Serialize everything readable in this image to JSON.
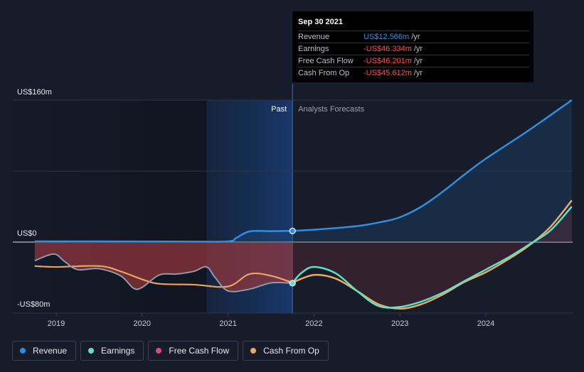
{
  "chart_data": {
    "type": "line",
    "y_axis_labels": [
      "US$160m",
      "US$0",
      "-US$80m"
    ],
    "ylim": [
      -80,
      160
    ],
    "y_unit": "US$m",
    "x_ticks": [
      "2019",
      "2020",
      "2021",
      "2022",
      "2023",
      "2024"
    ],
    "x_tick_values": [
      2019,
      2020,
      2021,
      2022,
      2023,
      2024
    ],
    "xlim": [
      2018.5,
      2025.0
    ],
    "past_label": "Past",
    "forecast_label": "Analysts Forecasts",
    "divider_x": 2021.75,
    "highlight_start_x": 2020.75,
    "series": [
      {
        "name": "Revenue",
        "color": "#2e8fe0",
        "points": [
          [
            2018.75,
            0.8
          ],
          [
            2019.5,
            0.8
          ],
          [
            2020.5,
            0.6
          ],
          [
            2021.0,
            0.8
          ],
          [
            2021.1,
            5
          ],
          [
            2021.25,
            12
          ],
          [
            2021.5,
            12.3
          ],
          [
            2021.75,
            12.566
          ],
          [
            2022.0,
            14
          ],
          [
            2022.5,
            18
          ],
          [
            2022.8,
            23
          ],
          [
            2023.0,
            28
          ],
          [
            2023.25,
            40
          ],
          [
            2023.5,
            57
          ],
          [
            2023.75,
            76
          ],
          [
            2024.0,
            94
          ],
          [
            2024.5,
            126
          ],
          [
            2025.0,
            160
          ]
        ]
      },
      {
        "name": "Earnings",
        "color": "#5ee1c7",
        "points": [
          [
            2018.75,
            -21
          ],
          [
            2018.9,
            -15
          ],
          [
            2019.0,
            -14
          ],
          [
            2019.1,
            -22
          ],
          [
            2019.25,
            -31
          ],
          [
            2019.5,
            -30
          ],
          [
            2019.75,
            -38
          ],
          [
            2019.9,
            -52
          ],
          [
            2020.0,
            -51
          ],
          [
            2020.2,
            -37
          ],
          [
            2020.4,
            -36
          ],
          [
            2020.6,
            -33
          ],
          [
            2020.75,
            -28
          ],
          [
            2020.85,
            -40
          ],
          [
            2021.0,
            -55
          ],
          [
            2021.25,
            -53
          ],
          [
            2021.5,
            -46
          ],
          [
            2021.75,
            -46.334
          ],
          [
            2021.85,
            -35
          ],
          [
            2022.0,
            -28
          ],
          [
            2022.25,
            -35
          ],
          [
            2022.5,
            -55
          ],
          [
            2022.75,
            -72
          ],
          [
            2023.0,
            -73
          ],
          [
            2023.25,
            -67
          ],
          [
            2023.5,
            -57
          ],
          [
            2023.75,
            -44
          ],
          [
            2024.0,
            -31
          ],
          [
            2024.25,
            -18
          ],
          [
            2024.5,
            -3
          ],
          [
            2024.75,
            13
          ],
          [
            2025.0,
            40
          ]
        ]
      },
      {
        "name": "Free Cash Flow",
        "color": "#d84a82",
        "points": [
          [
            2018.75,
            -27
          ],
          [
            2019.0,
            -28
          ],
          [
            2019.5,
            -27
          ],
          [
            2019.75,
            -33
          ],
          [
            2020.0,
            -42
          ],
          [
            2020.2,
            -47
          ],
          [
            2020.6,
            -48
          ],
          [
            2021.0,
            -50
          ],
          [
            2021.25,
            -36
          ],
          [
            2021.5,
            -38
          ],
          [
            2021.75,
            -46.201
          ]
        ]
      },
      {
        "name": "Cash From Op",
        "color": "#f0a860",
        "points": [
          [
            2018.75,
            -27
          ],
          [
            2019.0,
            -28
          ],
          [
            2019.5,
            -27
          ],
          [
            2019.75,
            -33
          ],
          [
            2020.0,
            -42
          ],
          [
            2020.2,
            -47
          ],
          [
            2020.6,
            -48
          ],
          [
            2021.0,
            -50
          ],
          [
            2021.25,
            -36
          ],
          [
            2021.5,
            -38
          ],
          [
            2021.75,
            -45.612
          ],
          [
            2022.0,
            -37
          ],
          [
            2022.25,
            -41
          ],
          [
            2022.5,
            -55
          ],
          [
            2022.75,
            -70
          ],
          [
            2023.0,
            -75
          ],
          [
            2023.25,
            -70
          ],
          [
            2023.5,
            -59
          ],
          [
            2023.75,
            -45
          ],
          [
            2024.0,
            -34
          ],
          [
            2024.25,
            -20
          ],
          [
            2024.5,
            -4
          ],
          [
            2024.75,
            17
          ],
          [
            2025.0,
            47
          ]
        ]
      }
    ],
    "grid": true,
    "legend_position": "bottom-left"
  },
  "tooltip": {
    "date": "Sep 30 2021",
    "rows": [
      {
        "name": "Revenue",
        "value": "US$12.566m",
        "unit": "/yr",
        "color": "#2e8fe0"
      },
      {
        "name": "Earnings",
        "value": "-US$46.334m",
        "unit": "/yr",
        "color": "#ff4d4d"
      },
      {
        "name": "Free Cash Flow",
        "value": "-US$46.201m",
        "unit": "/yr",
        "color": "#ff4d4d"
      },
      {
        "name": "Cash From Op",
        "value": "-US$45.612m",
        "unit": "/yr",
        "color": "#ff4d4d"
      }
    ]
  },
  "legend": [
    {
      "label": "Revenue",
      "color": "#2e8fe0"
    },
    {
      "label": "Earnings",
      "color": "#5ee1c7"
    },
    {
      "label": "Free Cash Flow",
      "color": "#d84a82"
    },
    {
      "label": "Cash From Op",
      "color": "#f0a860"
    }
  ]
}
